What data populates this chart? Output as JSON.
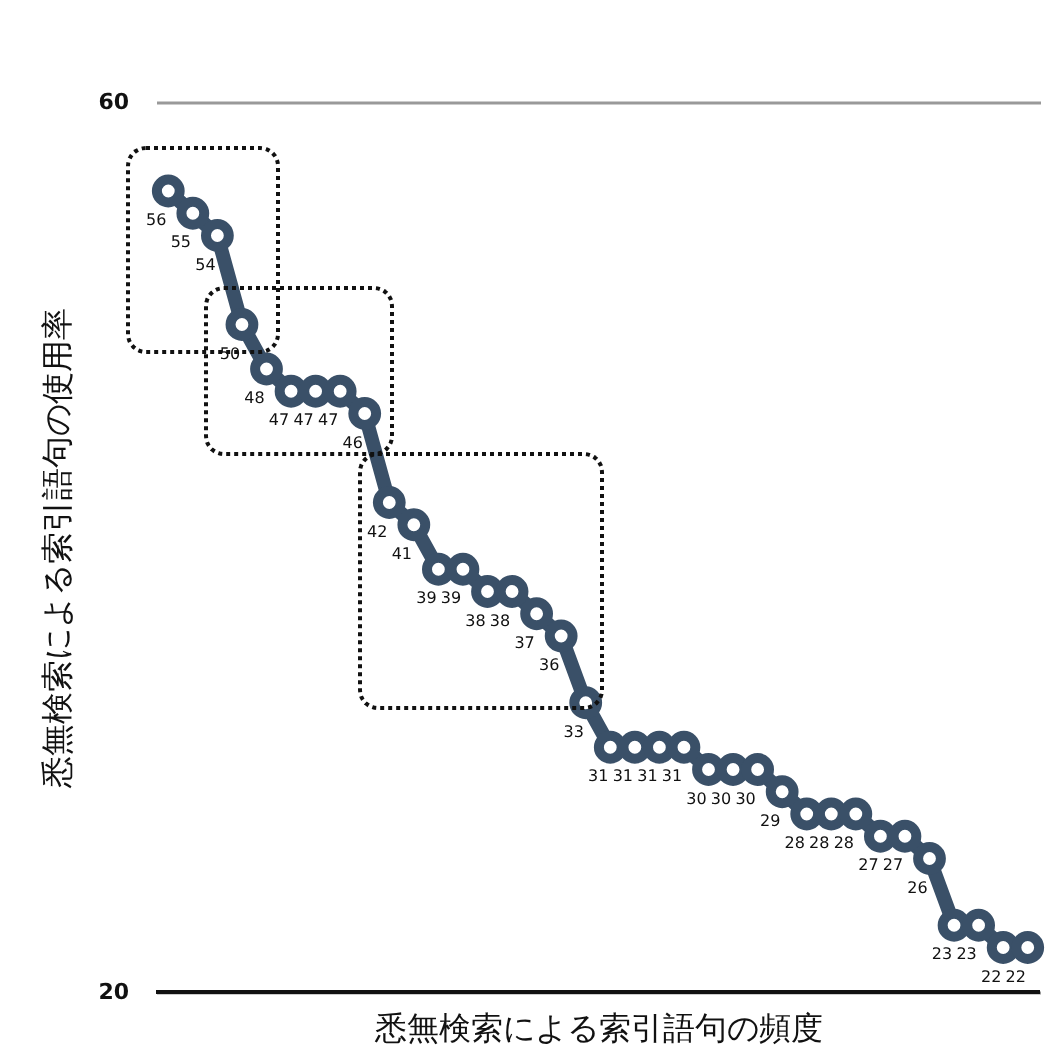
{
  "chart_data": {
    "type": "line",
    "xlabel": "悉無検索による索引語句の頻度",
    "ylabel": "悉無検索による索引語句の使用率",
    "categories": [
      null,
      null,
      null,
      null,
      null,
      null,
      null,
      null,
      null,
      null,
      null,
      null,
      null,
      null,
      null,
      null,
      null,
      null,
      null,
      null,
      null,
      null,
      null,
      null,
      null,
      null,
      null,
      null,
      null,
      null,
      null,
      null,
      null,
      null,
      null,
      null
    ],
    "series": [
      {
        "color": "#3a5068",
        "values": [
          56,
          55,
          54,
          50,
          48,
          47,
          47,
          47,
          46,
          42,
          41,
          39,
          39,
          38,
          38,
          37,
          36,
          33,
          31,
          31,
          31,
          31,
          30,
          30,
          30,
          29,
          28,
          28,
          28,
          27,
          27,
          26,
          23,
          23,
          22,
          22
        ]
      }
    ],
    "ylim": [
      20,
      60
    ],
    "yticks": [
      20,
      60
    ],
    "grid": "y",
    "marker": "circle",
    "line_style": "solid",
    "data_labels": true,
    "tick_labels": "y"
  }
}
